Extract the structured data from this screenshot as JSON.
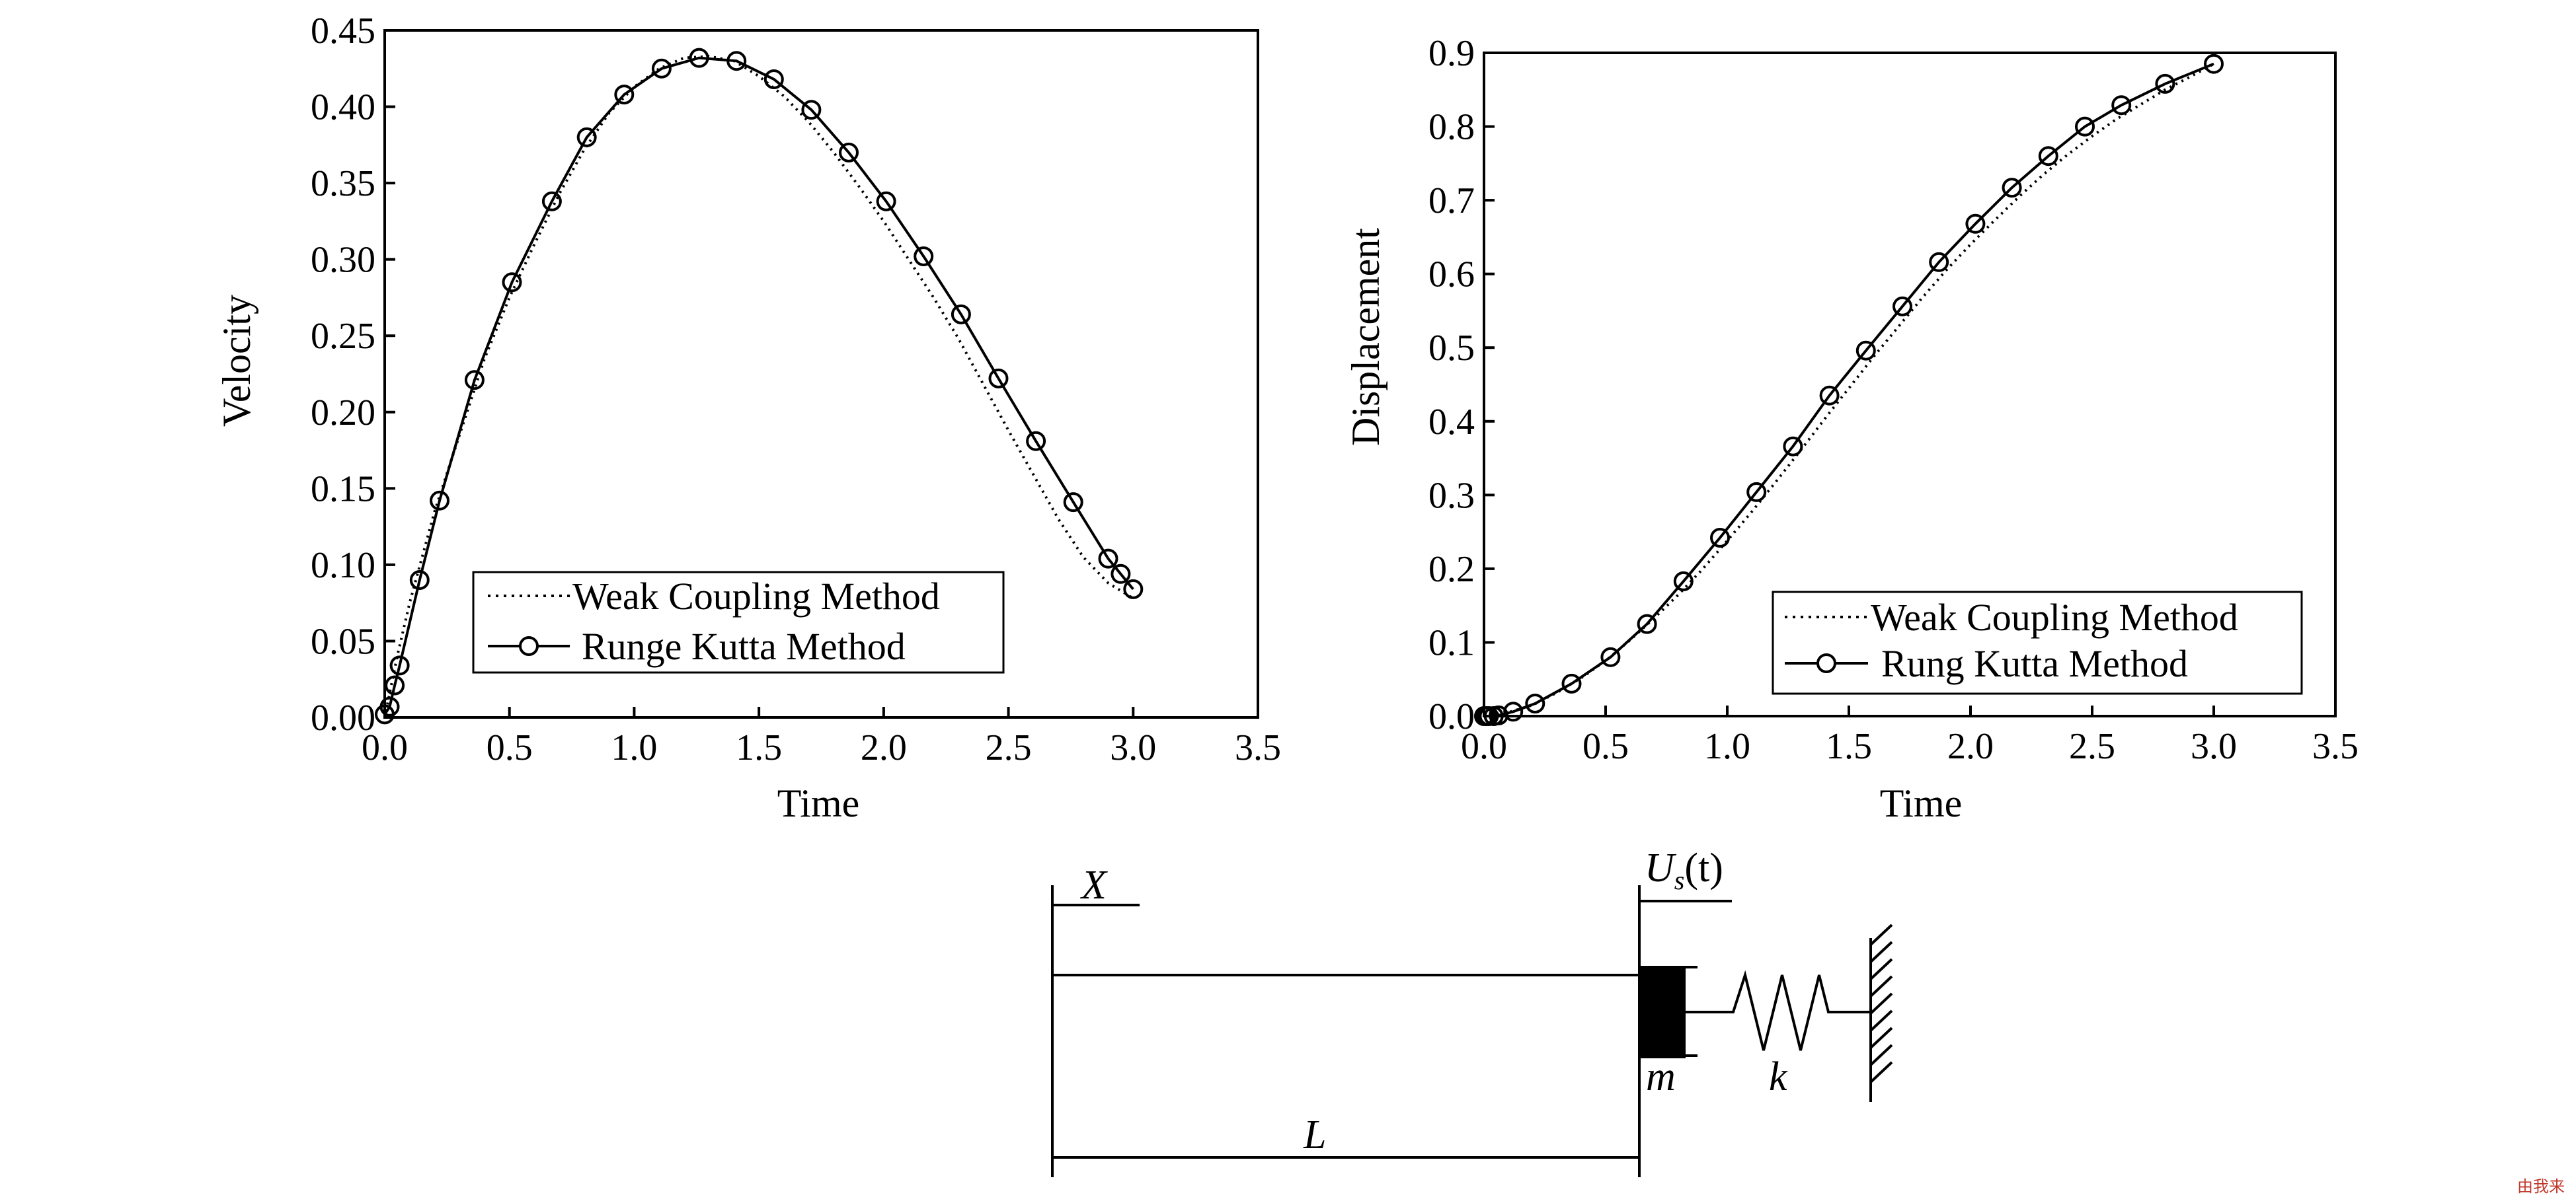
{
  "chart_data": [
    {
      "type": "line",
      "xlabel": "Time",
      "ylabel": "Velocity",
      "xlim": [
        0.0,
        3.5
      ],
      "ylim": [
        0.0,
        0.45
      ],
      "xticks": [
        "0.0",
        "0.5",
        "1.0",
        "1.5",
        "2.0",
        "2.5",
        "3.0",
        "3.5"
      ],
      "yticks": [
        "0.00",
        "0.05",
        "0.10",
        "0.15",
        "0.20",
        "0.25",
        "0.30",
        "0.35",
        "0.40",
        "0.45"
      ],
      "legend": "bottom-center",
      "grid": false,
      "series": [
        {
          "name": "Weak Coupling Method",
          "style": "dotted",
          "x": [
            0.0,
            0.05,
            0.1,
            0.15,
            0.2,
            0.3,
            0.4,
            0.5,
            0.6,
            0.7,
            0.8,
            0.9,
            1.0,
            1.1,
            1.2,
            1.3,
            1.4,
            1.5,
            1.6,
            1.7,
            1.8,
            1.9,
            2.0,
            2.1,
            2.2,
            2.3,
            2.4,
            2.5,
            2.6,
            2.7,
            2.8,
            2.9,
            3.0
          ],
          "y": [
            0.0,
            0.04,
            0.075,
            0.105,
            0.135,
            0.185,
            0.235,
            0.275,
            0.31,
            0.343,
            0.372,
            0.396,
            0.413,
            0.425,
            0.432,
            0.433,
            0.43,
            0.42,
            0.407,
            0.39,
            0.37,
            0.348,
            0.325,
            0.3,
            0.275,
            0.248,
            0.218,
            0.188,
            0.159,
            0.13,
            0.105,
            0.088,
            0.078
          ]
        },
        {
          "name": "Runge Kutta Method",
          "style": "solid-circle",
          "x": [
            0.0,
            0.02,
            0.04,
            0.06,
            0.14,
            0.22,
            0.36,
            0.51,
            0.67,
            0.81,
            0.96,
            1.11,
            1.26,
            1.41,
            1.56,
            1.71,
            1.86,
            2.01,
            2.16,
            2.31,
            2.46,
            2.61,
            2.76,
            2.9,
            2.95,
            3.0
          ],
          "y": [
            0.002,
            0.007,
            0.021,
            0.034,
            0.09,
            0.142,
            0.221,
            0.285,
            0.338,
            0.38,
            0.408,
            0.425,
            0.432,
            0.43,
            0.418,
            0.398,
            0.37,
            0.338,
            0.302,
            0.264,
            0.222,
            0.181,
            0.141,
            0.104,
            0.094,
            0.084
          ]
        }
      ]
    },
    {
      "type": "line",
      "xlabel": "Time",
      "ylabel": "Displacement",
      "xlim": [
        0.0,
        3.5
      ],
      "ylim": [
        0.0,
        0.9
      ],
      "xticks": [
        "0.0",
        "0.5",
        "1.0",
        "1.5",
        "2.0",
        "2.5",
        "3.0",
        "3.5"
      ],
      "yticks": [
        "0.0",
        "0.1",
        "0.2",
        "0.3",
        "0.4",
        "0.5",
        "0.6",
        "0.7",
        "0.8",
        "0.9"
      ],
      "legend": "bottom-right",
      "grid": false,
      "series": [
        {
          "name": "Weak Coupling Method",
          "style": "dotted",
          "x": [
            0.0,
            0.1,
            0.2,
            0.3,
            0.4,
            0.5,
            0.6,
            0.7,
            0.8,
            0.9,
            1.0,
            1.1,
            1.2,
            1.3,
            1.4,
            1.5,
            1.6,
            1.7,
            1.8,
            1.9,
            2.0,
            2.1,
            2.2,
            2.3,
            2.4,
            2.5,
            2.6,
            2.7,
            2.8,
            2.9,
            3.0
          ],
          "y": [
            0.0,
            0.005,
            0.015,
            0.032,
            0.052,
            0.075,
            0.103,
            0.133,
            0.165,
            0.2,
            0.238,
            0.277,
            0.318,
            0.36,
            0.403,
            0.445,
            0.487,
            0.527,
            0.567,
            0.605,
            0.64,
            0.673,
            0.705,
            0.735,
            0.762,
            0.787,
            0.81,
            0.83,
            0.85,
            0.867,
            0.885
          ]
        },
        {
          "name": "Rung Kutta Method",
          "style": "solid-circle",
          "x": [
            0.0,
            0.01,
            0.02,
            0.04,
            0.06,
            0.12,
            0.21,
            0.36,
            0.52,
            0.67,
            0.82,
            0.97,
            1.12,
            1.27,
            1.42,
            1.57,
            1.72,
            1.87,
            2.02,
            2.17,
            2.32,
            2.47,
            2.62,
            2.8,
            3.0
          ],
          "y": [
            0.0,
            0.0,
            0.0,
            0.0,
            0.001,
            0.006,
            0.017,
            0.044,
            0.08,
            0.125,
            0.183,
            0.242,
            0.304,
            0.366,
            0.435,
            0.496,
            0.556,
            0.616,
            0.668,
            0.717,
            0.76,
            0.8,
            0.829,
            0.858,
            0.885
          ]
        }
      ]
    }
  ],
  "diagram": {
    "labels": {
      "x": "X",
      "us_main": "U",
      "us_sub": "s",
      "us_arg": "(t)",
      "m": "m",
      "k": "k",
      "L": "L"
    }
  },
  "watermark": "由我来"
}
